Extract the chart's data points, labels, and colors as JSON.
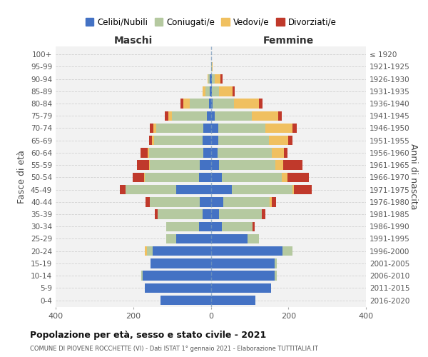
{
  "age_groups": [
    "0-4",
    "5-9",
    "10-14",
    "15-19",
    "20-24",
    "25-29",
    "30-34",
    "35-39",
    "40-44",
    "45-49",
    "50-54",
    "55-59",
    "60-64",
    "65-69",
    "70-74",
    "75-79",
    "80-84",
    "85-89",
    "90-94",
    "95-99",
    "100+"
  ],
  "birth_years": [
    "2016-2020",
    "2011-2015",
    "2006-2010",
    "2001-2005",
    "1996-2000",
    "1991-1995",
    "1986-1990",
    "1981-1985",
    "1976-1980",
    "1971-1975",
    "1966-1970",
    "1961-1965",
    "1956-1960",
    "1951-1955",
    "1946-1950",
    "1941-1945",
    "1936-1940",
    "1931-1935",
    "1926-1930",
    "1921-1925",
    "≤ 1920"
  ],
  "colors": {
    "celibi": "#4472c4",
    "coniugati": "#b5c9a0",
    "vedovi": "#f0c060",
    "divorziati": "#c0392b"
  },
  "maschi": {
    "celibi": [
      130,
      170,
      175,
      155,
      150,
      90,
      30,
      22,
      28,
      90,
      30,
      28,
      20,
      22,
      20,
      10,
      5,
      2,
      2,
      0,
      0
    ],
    "coniugati": [
      0,
      0,
      5,
      0,
      15,
      25,
      85,
      115,
      130,
      130,
      140,
      130,
      140,
      125,
      120,
      90,
      50,
      12,
      5,
      0,
      0
    ],
    "vedovi": [
      0,
      0,
      0,
      0,
      5,
      0,
      0,
      0,
      0,
      0,
      2,
      2,
      2,
      5,
      8,
      10,
      15,
      8,
      2,
      0,
      0
    ],
    "divorziati": [
      0,
      0,
      0,
      0,
      0,
      0,
      0,
      8,
      10,
      15,
      30,
      30,
      20,
      8,
      10,
      8,
      8,
      0,
      0,
      0,
      0
    ]
  },
  "femmine": {
    "celibi": [
      115,
      155,
      165,
      165,
      185,
      95,
      28,
      22,
      32,
      55,
      28,
      22,
      18,
      20,
      20,
      10,
      5,
      3,
      2,
      0,
      0
    ],
    "coniugati": [
      0,
      0,
      5,
      5,
      25,
      30,
      80,
      110,
      120,
      155,
      155,
      145,
      140,
      130,
      120,
      95,
      55,
      18,
      8,
      2,
      0
    ],
    "vedovi": [
      0,
      0,
      0,
      0,
      0,
      0,
      0,
      0,
      5,
      5,
      15,
      20,
      30,
      50,
      70,
      68,
      65,
      35,
      15,
      2,
      0
    ],
    "divorziati": [
      0,
      0,
      0,
      0,
      0,
      0,
      5,
      8,
      12,
      45,
      55,
      50,
      10,
      10,
      12,
      10,
      8,
      5,
      5,
      0,
      0
    ]
  },
  "title": "Popolazione per età, sesso e stato civile - 2021",
  "subtitle": "COMUNE DI PIOVENE ROCCHETTE (VI) - Dati ISTAT 1° gennaio 2021 - Elaborazione TUTTITALIA.IT",
  "ylabel_left": "Fasce di età",
  "ylabel_right": "Anni di nascita",
  "xlim": 400,
  "legend_labels": [
    "Celibi/Nubili",
    "Coniugati/e",
    "Vedovi/e",
    "Divorziati/e"
  ],
  "maschi_label": "Maschi",
  "femmine_label": "Femmine",
  "background_color": "#f2f2f2",
  "grid_color": "#cccccc"
}
